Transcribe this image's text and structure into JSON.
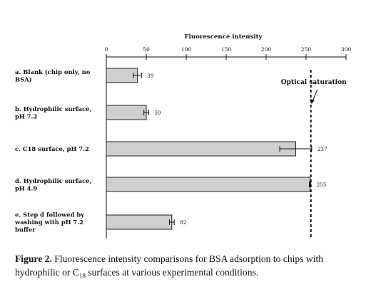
{
  "chart_data": {
    "type": "bar",
    "orientation": "horizontal",
    "title": "Fluorescence intensity",
    "xlim": [
      0,
      300
    ],
    "xticks": [
      "0",
      "50",
      "100",
      "150",
      "200",
      "250",
      "300"
    ],
    "categories": [
      [
        "a. Blank (chip only, no",
        "BSA)"
      ],
      [
        "b. Hydrophilic surface,",
        "pH 7.2"
      ],
      [
        "c. C18 surface, pH 7.2"
      ],
      [
        "d. Hydrophilic surface,",
        "pH 4.9"
      ],
      [
        "e. Step d followed by",
        "washing with pH 7.2",
        "buffer"
      ]
    ],
    "values": [
      39,
      50,
      237,
      255,
      82
    ],
    "value_labels": [
      "39",
      "50",
      "237",
      "255",
      "82"
    ],
    "errors": [
      5,
      3,
      20,
      1,
      3
    ],
    "bar_color": "#cfcfcf",
    "reference_line": {
      "value": 256,
      "label": "Optical saturation",
      "style": "dashed"
    }
  },
  "caption": {
    "label": "Figure 2.",
    "text_before": "Fluorescence intensity comparisons for BSA adsorption to chips with hydrophilic or C",
    "sub": "18",
    "text_after": " surfaces at various experimental conditions."
  }
}
